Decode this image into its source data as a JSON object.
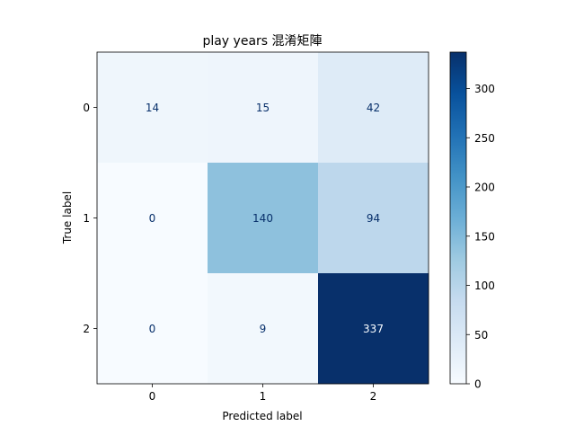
{
  "chart_data": {
    "type": "heatmap",
    "title": "play years 混淆矩陣",
    "xlabel": "Predicted label",
    "ylabel": "True label",
    "x_ticks": [
      "0",
      "1",
      "2"
    ],
    "y_ticks": [
      "0",
      "1",
      "2"
    ],
    "matrix": [
      [
        14,
        15,
        42
      ],
      [
        0,
        140,
        94
      ],
      [
        0,
        9,
        337
      ]
    ],
    "colormap": "Blues",
    "colorbar": {
      "min": 0,
      "max": 337,
      "ticks": [
        0,
        50,
        100,
        150,
        200,
        250,
        300
      ],
      "tick_labels": [
        "0",
        "50",
        "100",
        "150",
        "200",
        "250",
        "300"
      ]
    }
  }
}
